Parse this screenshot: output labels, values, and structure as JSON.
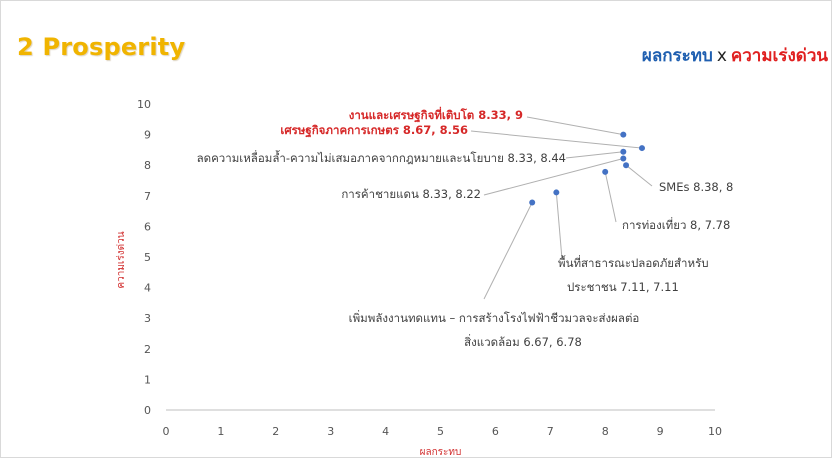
{
  "slide": {
    "title": "2 Prosperity",
    "header_impact": "ผลกระทบ",
    "header_times": "x",
    "header_urgency": "ความเร่งด่วน"
  },
  "colors": {
    "title": "#f0b400",
    "impact": "#1f5fb0",
    "urgency": "#e02020",
    "point": "#4472c4",
    "highlight_label": "#d62828",
    "label": "#404040"
  },
  "chart_data": {
    "type": "scatter",
    "xlabel": "ผลกระทบ",
    "ylabel": "ความเร่งด่วน",
    "xlim": [
      0,
      10
    ],
    "ylim": [
      0,
      10
    ],
    "x_ticks": [
      "0",
      "1",
      "2",
      "3",
      "4",
      "5",
      "6",
      "7",
      "8",
      "9",
      "10"
    ],
    "y_ticks": [
      "0",
      "1",
      "2",
      "3",
      "4",
      "5",
      "6",
      "7",
      "8",
      "9",
      "10"
    ],
    "grid": false,
    "points": [
      {
        "label": "งานและเศรษฐกิจที่เติบโต 8.33, 9",
        "x": 8.33,
        "y": 9,
        "highlight": true
      },
      {
        "label": "เศรษฐกิจภาคการเกษตร 8.67, 8.56",
        "x": 8.67,
        "y": 8.56,
        "highlight": true
      },
      {
        "label": "ลดความเหลื่อมล้ำ-ความไม่เสมอภาคจากกฎหมายและนโยบาย 8.33, 8.44",
        "x": 8.33,
        "y": 8.44,
        "highlight": false
      },
      {
        "label": "การค้าชายแดน 8.33, 8.22",
        "x": 8.33,
        "y": 8.22,
        "highlight": false
      },
      {
        "label": "SMEs 8.38, 8",
        "x": 8.38,
        "y": 8,
        "highlight": false
      },
      {
        "label": "การท่องเที่ยว 8, 7.78",
        "x": 8,
        "y": 7.78,
        "highlight": false
      },
      {
        "label": [
          "พื้นที่สาธารณะปลอดภัยสำหรับ",
          "ประชาชน 7.11, 7.11"
        ],
        "x": 7.11,
        "y": 7.11,
        "highlight": false
      },
      {
        "label": [
          "เพิ่มพลังงานทดแทน – การสร้างโรงไฟฟ้าชีวมวลจะส่งผลต่อ",
          "สิ่งแวดล้อม 6.67, 6.78"
        ],
        "x": 6.67,
        "y": 6.78,
        "highlight": false
      }
    ]
  }
}
